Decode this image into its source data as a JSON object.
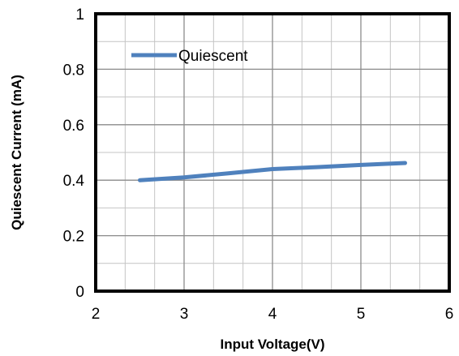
{
  "chart_data": {
    "type": "line",
    "title": "",
    "xlabel": "Input Voltage(V)",
    "ylabel": "Quiescent Current (mA)",
    "xlim": [
      2,
      6
    ],
    "ylim": [
      0,
      1
    ],
    "x_ticks": [
      2,
      3,
      4,
      5,
      6
    ],
    "x_tick_labels": [
      "2",
      "3",
      "4",
      "5",
      "6"
    ],
    "y_ticks": [
      0,
      0.2,
      0.4,
      0.6,
      0.8,
      1
    ],
    "y_tick_labels": [
      "0",
      "0.2",
      "0.4",
      "0.6",
      "0.8",
      "1"
    ],
    "x_minor_step": 0.333333,
    "y_minor_step": 0.1,
    "grid": true,
    "legend_position": "top-left",
    "series": [
      {
        "name": "Quiescent",
        "color": "#4f81bd",
        "x": [
          2.5,
          3.0,
          3.5,
          4.0,
          4.5,
          5.0,
          5.5
        ],
        "y": [
          0.4,
          0.41,
          0.425,
          0.44,
          0.447,
          0.455,
          0.462
        ]
      }
    ]
  }
}
